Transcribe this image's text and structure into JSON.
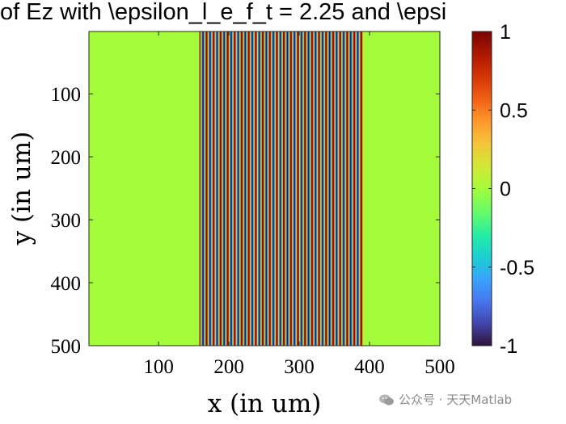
{
  "chart_data": {
    "type": "heatmap",
    "title": "of Ez with \\epsilon_l_e_f_t = 2.25 and \\epsi",
    "xlabel": "x (in um)",
    "ylabel": "y (in um)",
    "xlim": [
      1,
      500
    ],
    "ylim": [
      1,
      500
    ],
    "y_reversed": true,
    "x_ticks": [
      100,
      200,
      300,
      400,
      500
    ],
    "x_tick_labels": [
      "100",
      "200",
      "300",
      "400",
      "500"
    ],
    "y_ticks": [
      100,
      200,
      300,
      400,
      500
    ],
    "y_tick_labels": [
      "100",
      "200",
      "300",
      "400",
      "500"
    ],
    "field": {
      "description_values": "Ez uniform in y; zero outside the slab, sinusoidal stripes inside",
      "value_outside_slab": 0,
      "slab_x_range": [
        158,
        391
      ],
      "stripe_period_x": 10,
      "amplitude": 1
    },
    "colorbar": {
      "colormap": "turbo",
      "range": [
        -1,
        1
      ],
      "ticks": [
        1,
        0.5,
        0,
        -0.5,
        -1
      ],
      "tick_labels": [
        "1",
        "0.5",
        "0",
        "-0.5",
        "-1"
      ]
    }
  },
  "watermark": {
    "text": "公众号 · 天天Matlab",
    "icon": "wechat-icon"
  }
}
